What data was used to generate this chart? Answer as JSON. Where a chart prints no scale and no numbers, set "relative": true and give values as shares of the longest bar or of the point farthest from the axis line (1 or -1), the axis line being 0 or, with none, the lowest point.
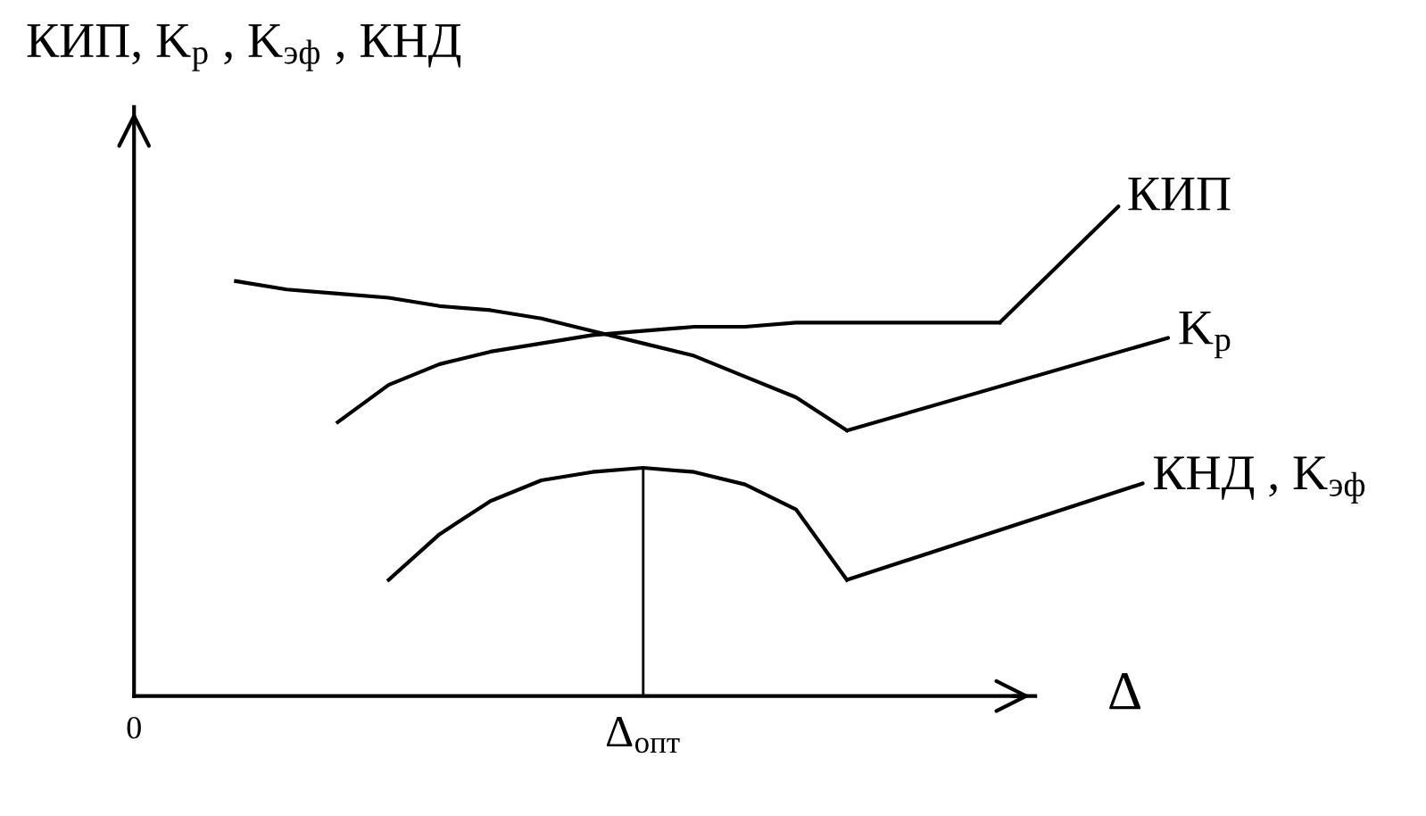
{
  "chart_data": {
    "type": "line",
    "relative": true,
    "ylabel": "КИП, K$_{р}$ , K$_{эф}$ , КНД",
    "xlabel": "Δ",
    "categories": [
      "0",
      null,
      null,
      null,
      null,
      null,
      null,
      null,
      null,
      null,
      "Δ$_{опт}$",
      null,
      null,
      null,
      null,
      null,
      null,
      null
    ],
    "grid": false,
    "legend": false,
    "marker": "none",
    "line_style": "solid",
    "series": [
      {
        "name": "КИП",
        "color": "#000000",
        "values": [
          null,
          null,
          null,
          null,
          0.66,
          0.75,
          0.8,
          0.83,
          0.85,
          0.87,
          0.88,
          0.89,
          0.89,
          0.9,
          0.9,
          0.9,
          0.9,
          0.9
        ]
      },
      {
        "name": "K$_{р}$",
        "color": "#000000",
        "values": [
          null,
          null,
          1.0,
          0.98,
          0.97,
          0.96,
          0.94,
          0.93,
          0.91,
          0.88,
          0.85,
          0.82,
          0.77,
          0.72,
          0.64,
          null,
          null,
          null
        ]
      },
      {
        "name": "КНД , K$_{эф}$",
        "color": "#000000",
        "values": [
          null,
          null,
          null,
          null,
          null,
          0.28,
          0.39,
          0.47,
          0.52,
          0.54,
          0.55,
          0.54,
          0.51,
          0.45,
          0.28,
          null,
          null,
          null
        ]
      },
      {
        "type": "bar",
        "color": "#000000",
        "values": [
          null,
          null,
          null,
          null,
          null,
          null,
          null,
          null,
          null,
          null,
          0.55,
          null,
          null,
          null,
          null,
          null,
          null,
          null
        ]
      }
    ]
  }
}
